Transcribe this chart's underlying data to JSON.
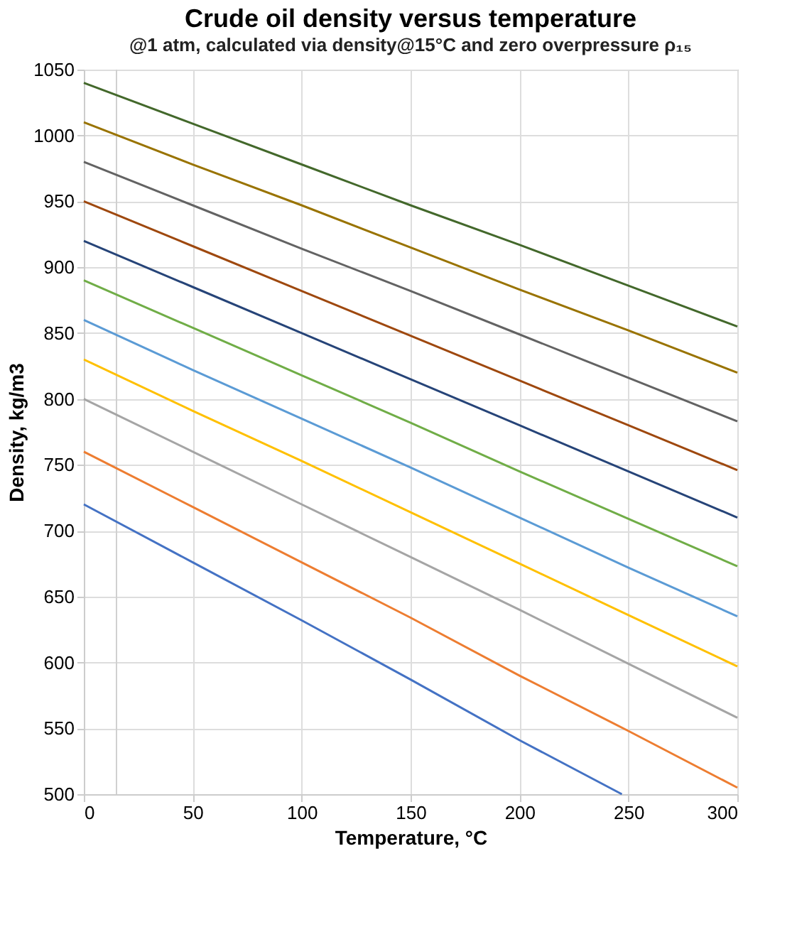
{
  "chart_data": {
    "type": "line",
    "title": "Crude oil density versus temperature",
    "subtitle": "@1 atm, calculated via density@15°C and zero overpressure ρ₁₅",
    "xlabel": "Temperature, °C",
    "ylabel": "Density, kg/m3",
    "x": [
      0,
      50,
      100,
      150,
      200,
      250,
      300
    ],
    "series": [
      {
        "color": "#4472c4",
        "x": [
          0,
          50,
          100,
          150,
          200,
          247
        ],
        "values": [
          720,
          676,
          632,
          587,
          541,
          500
        ]
      },
      {
        "color": "#ed7d31",
        "values": [
          760,
          718,
          676,
          634,
          590,
          548,
          505
        ]
      },
      {
        "color": "#a5a5a5",
        "values": [
          800,
          760,
          720,
          680,
          640,
          599,
          558
        ]
      },
      {
        "color": "#ffc000",
        "values": [
          830,
          791,
          753,
          714,
          675,
          636,
          597
        ]
      },
      {
        "color": "#5b9bd5",
        "values": [
          860,
          822,
          785,
          748,
          710,
          672,
          635
        ]
      },
      {
        "color": "#70ad47",
        "values": [
          890,
          854,
          818,
          782,
          745,
          709,
          673
        ]
      },
      {
        "color": "#264478",
        "values": [
          920,
          885,
          850,
          815,
          780,
          745,
          710
        ]
      },
      {
        "color": "#9e480e",
        "values": [
          950,
          916,
          882,
          848,
          814,
          780,
          746
        ]
      },
      {
        "color": "#636363",
        "values": [
          980,
          947,
          914,
          882,
          849,
          816,
          783
        ]
      },
      {
        "color": "#997300",
        "values": [
          1010,
          978,
          947,
          915,
          883,
          852,
          820
        ]
      },
      {
        "color": "#43682b",
        "values": [
          1040,
          1009,
          978,
          947,
          917,
          886,
          855
        ]
      }
    ],
    "xlim": [
      0,
      300
    ],
    "xticks": [
      0,
      50,
      100,
      150,
      200,
      250,
      300
    ],
    "ylim": [
      500,
      1050
    ],
    "yticks": [
      500,
      550,
      600,
      650,
      700,
      750,
      800,
      850,
      900,
      950,
      1000,
      1050
    ],
    "ref_lines": [
      {
        "axis": "x",
        "value": 15,
        "color": "#d0d0d0"
      }
    ],
    "grid": true,
    "legend": false,
    "marker": "none",
    "line_style": "solid"
  }
}
